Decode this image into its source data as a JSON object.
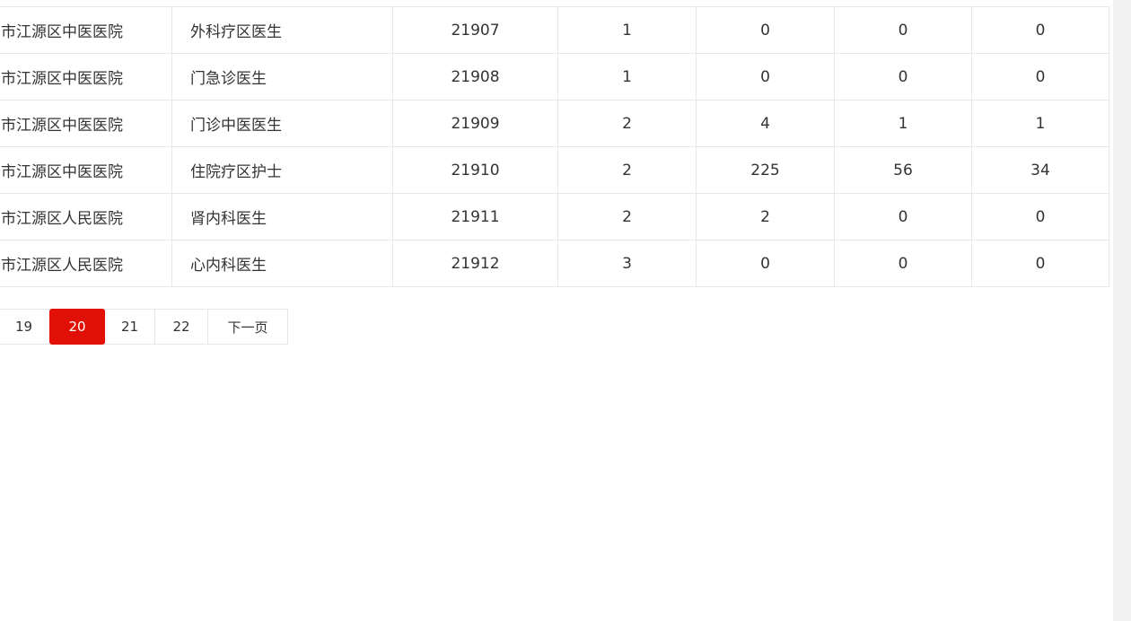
{
  "table": {
    "rows": [
      {
        "hospital": "市江源区中医医院",
        "position": "外科疗区医生",
        "code": "21907",
        "c1": "1",
        "c2": "0",
        "c3": "0",
        "c4": "0"
      },
      {
        "hospital": "市江源区中医医院",
        "position": "门急诊医生",
        "code": "21908",
        "c1": "1",
        "c2": "0",
        "c3": "0",
        "c4": "0"
      },
      {
        "hospital": "市江源区中医医院",
        "position": "门诊中医医生",
        "code": "21909",
        "c1": "2",
        "c2": "4",
        "c3": "1",
        "c4": "1"
      },
      {
        "hospital": "市江源区中医医院",
        "position": "住院疗区护士",
        "code": "21910",
        "c1": "2",
        "c2": "225",
        "c3": "56",
        "c4": "34"
      },
      {
        "hospital": "市江源区人民医院",
        "position": "肾内科医生",
        "code": "21911",
        "c1": "2",
        "c2": "2",
        "c3": "0",
        "c4": "0"
      },
      {
        "hospital": "市江源区人民医院",
        "position": "心内科医生",
        "code": "21912",
        "c1": "3",
        "c2": "0",
        "c3": "0",
        "c4": "0"
      }
    ]
  },
  "pagination": {
    "pages": [
      "19",
      "20",
      "21",
      "22"
    ],
    "current": "20",
    "next_label": "下一页",
    "active_color": "#e01006"
  }
}
